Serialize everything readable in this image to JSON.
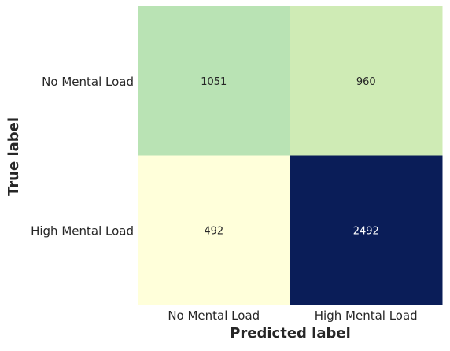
{
  "chart_data": {
    "type": "heatmap",
    "title": "",
    "xlabel": "Predicted label",
    "ylabel": "True label",
    "x_categories": [
      "No Mental Load",
      "High Mental Load"
    ],
    "y_categories": [
      "No Mental Load",
      "High Mental Load"
    ],
    "values": [
      [
        1051,
        960
      ],
      [
        492,
        2492
      ]
    ],
    "colorscale": "YlGnBu",
    "colorbar": false,
    "cell_colors": [
      [
        "#b9e3b4",
        "#cfebb5"
      ],
      [
        "#ffffda",
        "#0a1d58"
      ]
    ],
    "annotation_colors": [
      [
        "#262626",
        "#262626"
      ],
      [
        "#262626",
        "#ffffff"
      ]
    ]
  }
}
